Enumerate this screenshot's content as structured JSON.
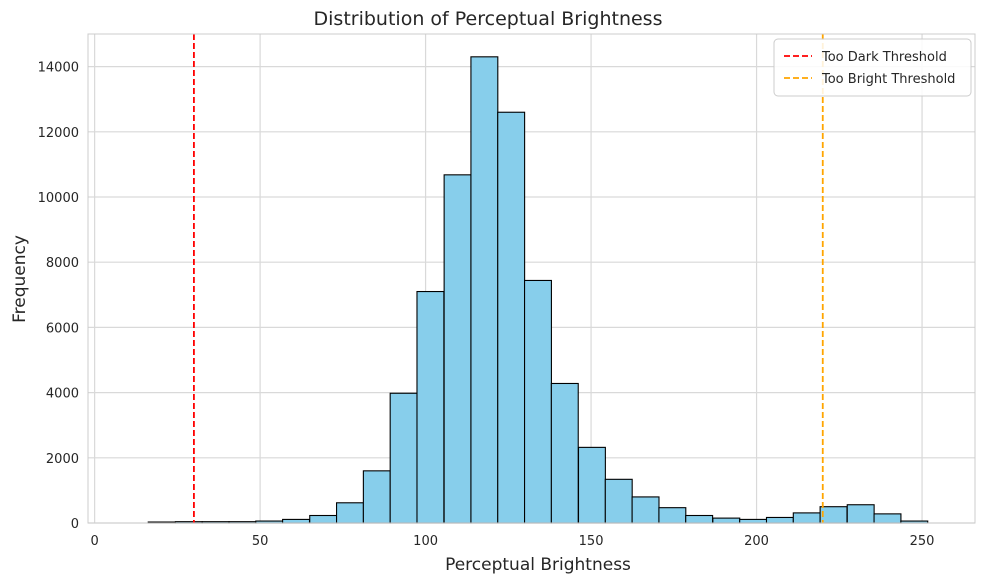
{
  "chart_data": {
    "type": "bar",
    "title": "Distribution of Perceptual Brightness",
    "xlabel": "Perceptual Brightness",
    "ylabel": "Frequency",
    "xlim": [
      -2,
      266
    ],
    "ylim": [
      0,
      15000
    ],
    "xticks": [
      0,
      50,
      100,
      150,
      200,
      250
    ],
    "yticks": [
      0,
      2000,
      4000,
      6000,
      8000,
      10000,
      12000,
      14000
    ],
    "grid": true,
    "bin_width": 8.12,
    "bins": [
      {
        "x0": 0.0,
        "value": 0
      },
      {
        "x0": 8.1,
        "value": 0
      },
      {
        "x0": 16.2,
        "value": 30
      },
      {
        "x0": 24.4,
        "value": 40
      },
      {
        "x0": 32.5,
        "value": 40
      },
      {
        "x0": 40.6,
        "value": 40
      },
      {
        "x0": 48.7,
        "value": 60
      },
      {
        "x0": 56.8,
        "value": 110
      },
      {
        "x0": 65.0,
        "value": 230
      },
      {
        "x0": 73.1,
        "value": 620
      },
      {
        "x0": 81.2,
        "value": 1600
      },
      {
        "x0": 89.3,
        "value": 3980
      },
      {
        "x0": 97.4,
        "value": 7100
      },
      {
        "x0": 105.6,
        "value": 10680
      },
      {
        "x0": 113.7,
        "value": 14300
      },
      {
        "x0": 121.8,
        "value": 12600
      },
      {
        "x0": 129.9,
        "value": 7440
      },
      {
        "x0": 138.0,
        "value": 4280
      },
      {
        "x0": 146.2,
        "value": 2320
      },
      {
        "x0": 154.3,
        "value": 1340
      },
      {
        "x0": 162.4,
        "value": 800
      },
      {
        "x0": 170.5,
        "value": 470
      },
      {
        "x0": 178.6,
        "value": 230
      },
      {
        "x0": 186.8,
        "value": 150
      },
      {
        "x0": 194.9,
        "value": 110
      },
      {
        "x0": 203.0,
        "value": 170
      },
      {
        "x0": 211.1,
        "value": 310
      },
      {
        "x0": 219.2,
        "value": 500
      },
      {
        "x0": 227.4,
        "value": 560
      },
      {
        "x0": 235.5,
        "value": 280
      },
      {
        "x0": 243.6,
        "value": 60
      }
    ],
    "bar_color": "#87ceeb",
    "bar_edge_color": "#000000",
    "thresholds": [
      {
        "name": "Too Dark Threshold",
        "x": 30,
        "color": "#ff0000",
        "style": "dashed"
      },
      {
        "name": "Too Bright Threshold",
        "x": 220,
        "color": "#ffa500",
        "style": "dashed"
      }
    ],
    "legend_position": "top-right"
  }
}
